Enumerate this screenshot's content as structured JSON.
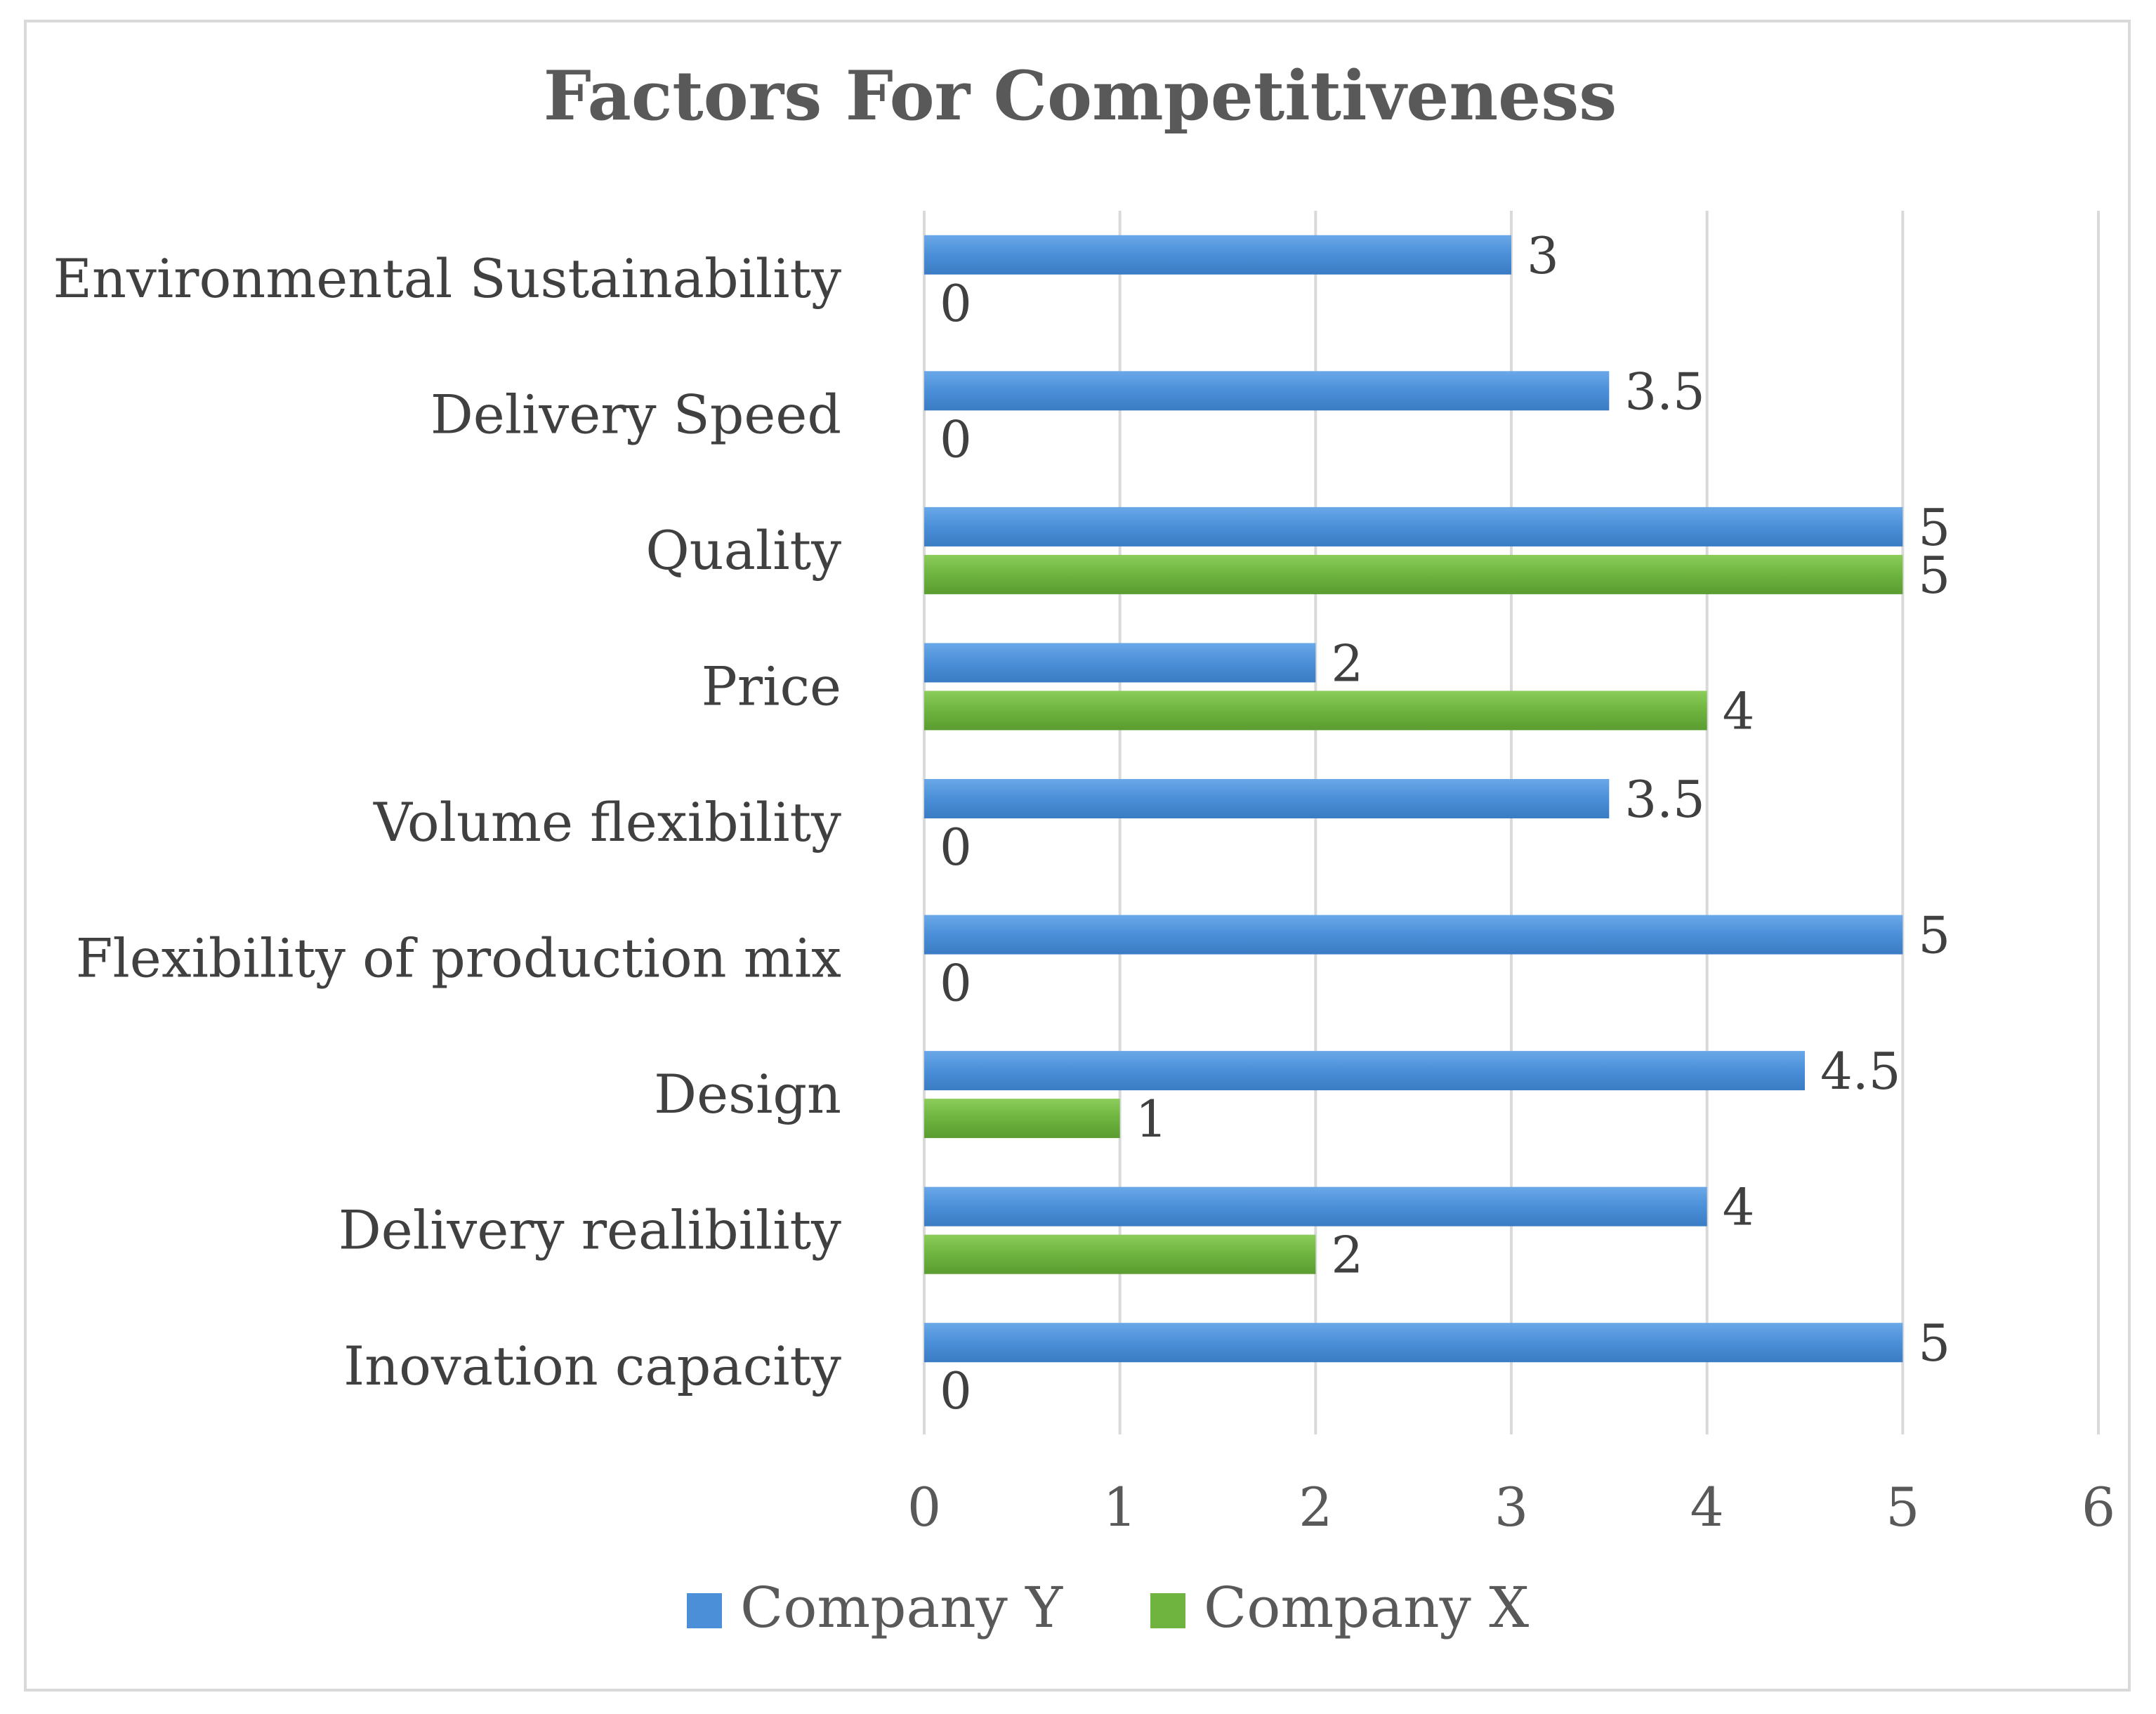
{
  "chart_data": {
    "type": "bar",
    "orientation": "horizontal",
    "title": "Factors For Competitiveness",
    "categories": [
      "Environmental Sustainability",
      "Delivery Speed",
      "Quality",
      "Price",
      "Volume flexibility",
      "Flexibility of production mix",
      "Design",
      "Delivery realibility",
      "Inovation capacity"
    ],
    "series": [
      {
        "name": "Company Y",
        "color": "#4a8fd8",
        "values": [
          3,
          3.5,
          5,
          2,
          3.5,
          5,
          4.5,
          4,
          5
        ],
        "labels": [
          "3",
          "3.5",
          "5",
          "2",
          "3.5",
          "5",
          "4.5",
          "4",
          "5"
        ]
      },
      {
        "name": "Company X",
        "color": "#6eb43f",
        "values": [
          0,
          0,
          5,
          4,
          0,
          0,
          1,
          2,
          0
        ],
        "labels": [
          "0",
          "0",
          "5",
          "4",
          "0",
          "0",
          "1",
          "2",
          "0"
        ]
      }
    ],
    "xlim": [
      0,
      6
    ],
    "xticks": [
      "0",
      "1",
      "2",
      "3",
      "4",
      "5",
      "6"
    ],
    "grid": true,
    "legend_position": "bottom",
    "xlabel": "",
    "ylabel": ""
  }
}
